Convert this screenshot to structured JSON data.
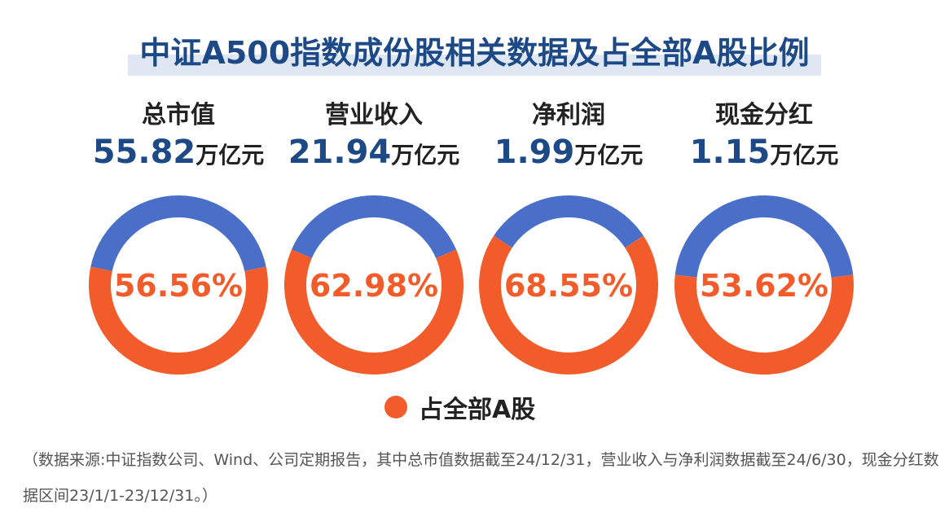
{
  "title": "中证A500指数成份股相关数据及占全部A股比例",
  "metrics": [
    {
      "name": "总市值",
      "value": "55.82",
      "unit": "万亿元"
    },
    {
      "name": "营业收入",
      "value": "21.94",
      "unit": "万亿元"
    },
    {
      "name": "净利润",
      "value": "1.99",
      "unit": "万亿元"
    },
    {
      "name": "现金分红",
      "value": "1.15",
      "unit": "万亿元"
    }
  ],
  "chart_data": {
    "type": "pie",
    "series": [
      {
        "name": "占全部A股",
        "values": [
          56.56,
          62.98,
          68.55,
          53.62
        ]
      }
    ],
    "slice_labels": [
      "56.56%",
      "62.98%",
      "68.55%",
      "53.62%"
    ],
    "colors": {
      "share": "#f25c2a",
      "rest": "#4a6fc9",
      "text": "#f25c2a"
    },
    "legend": {
      "placement": "bottom-center",
      "label": "占全部A股"
    }
  },
  "note": "（数据来源:中证指数公司、Wind、公司定期报告，其中总市值数据截至24/12/31，营业收入与净利润数据截至24/6/30，现金分红数据区间23/1/1-23/12/31。）"
}
